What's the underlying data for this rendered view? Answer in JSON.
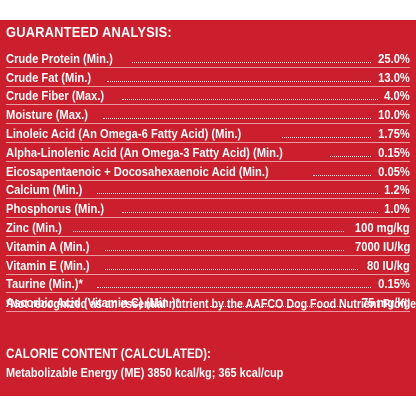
{
  "heading": "GUARANTEED ANALYSIS:",
  "rows": [
    {
      "label": "Crude Protein (Min.)",
      "value": "25.0%"
    },
    {
      "label": "Crude Fat (Min.)",
      "value": "13.0%"
    },
    {
      "label": "Crude Fiber (Max.)",
      "value": "4.0%"
    },
    {
      "label": "Moisture (Max.)",
      "value": "10.0%"
    },
    {
      "label": "Linoleic Acid (An Omega-6 Fatty Acid) (Min.)",
      "value": "1.75%"
    },
    {
      "label": "Alpha-Linolenic Acid (An Omega-3 Fatty Acid) (Min.)",
      "value": "0.15%"
    },
    {
      "label": "Eicosapentaenoic + Docosahexaenoic Acid (Min.)",
      "value": "0.05%"
    },
    {
      "label": "Calcium (Min.)",
      "value": "1.2%"
    },
    {
      "label": "Phosphorus (Min.)",
      "value": "1.0%"
    },
    {
      "label": "Zinc (Min.)",
      "value": "100 mg/kg"
    },
    {
      "label": "Vitamin A (Min.)",
      "value": "7000 IU/kg"
    },
    {
      "label": "Vitamin E (Min.)",
      "value": "80 IU/kg"
    },
    {
      "label": "Taurine (Min.)*",
      "value": "0.15%"
    },
    {
      "label": "Ascorbic Acid (Vitamin C) (Min.)*",
      "value": "75 mg/kg"
    }
  ],
  "footnote": "*Not recognized as an essential nutrient by the AAFCO Dog Food Nutrient Profiles.",
  "calorie": {
    "title": "CALORIE CONTENT (CALCULATED):",
    "text": "Metabolizable Energy (ME) 3850 kcal/kg; 365 kcal/cup"
  },
  "colors": {
    "background": "#cc1f2e",
    "text": "#ffffff"
  }
}
